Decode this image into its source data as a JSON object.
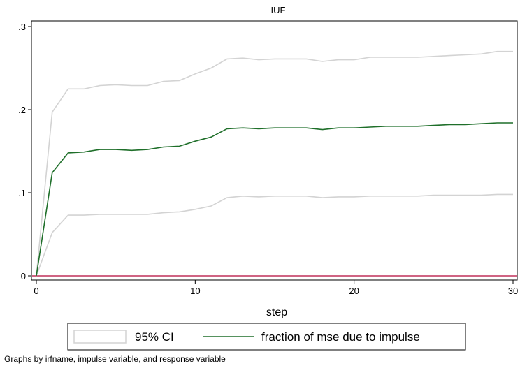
{
  "chart_data": {
    "type": "line",
    "title": "IUF",
    "xlabel": "step",
    "ylabel": "",
    "xlim": [
      0,
      30
    ],
    "ylim": [
      0,
      0.3
    ],
    "x_ticks": [
      {
        "value": 0,
        "label": "0"
      },
      {
        "value": 10,
        "label": "10"
      },
      {
        "value": 20,
        "label": "20"
      },
      {
        "value": 30,
        "label": "30"
      }
    ],
    "y_ticks": [
      {
        "value": 0,
        "label": "0"
      },
      {
        "value": 0.1,
        "label": ".1"
      },
      {
        "value": 0.2,
        "label": ".2"
      },
      {
        "value": 0.3,
        "label": ".3"
      }
    ],
    "x": [
      0,
      1,
      2,
      3,
      4,
      5,
      6,
      7,
      8,
      9,
      10,
      11,
      12,
      13,
      14,
      15,
      16,
      17,
      18,
      19,
      20,
      21,
      22,
      23,
      24,
      25,
      26,
      27,
      28,
      29,
      30
    ],
    "series": [
      {
        "name": "95% CI",
        "role": "ci_upper",
        "color": "#d3d3d3",
        "values": [
          0,
          0.197,
          0.225,
          0.225,
          0.229,
          0.23,
          0.229,
          0.229,
          0.234,
          0.235,
          0.243,
          0.25,
          0.261,
          0.262,
          0.26,
          0.261,
          0.261,
          0.261,
          0.258,
          0.26,
          0.26,
          0.263,
          0.263,
          0.263,
          0.263,
          0.264,
          0.265,
          0.266,
          0.267,
          0.27,
          0.27
        ]
      },
      {
        "name": "95% CI",
        "role": "ci_lower",
        "color": "#d3d3d3",
        "values": [
          0,
          0.052,
          0.073,
          0.073,
          0.074,
          0.074,
          0.074,
          0.074,
          0.076,
          0.077,
          0.08,
          0.084,
          0.094,
          0.096,
          0.095,
          0.096,
          0.096,
          0.096,
          0.094,
          0.095,
          0.095,
          0.096,
          0.096,
          0.096,
          0.096,
          0.097,
          0.097,
          0.097,
          0.097,
          0.098,
          0.098
        ]
      },
      {
        "name": "fraction of mse due to impulse",
        "role": "estimate",
        "color": "#1f6f2a",
        "values": [
          0,
          0.124,
          0.148,
          0.149,
          0.152,
          0.152,
          0.151,
          0.152,
          0.155,
          0.156,
          0.162,
          0.167,
          0.177,
          0.178,
          0.177,
          0.178,
          0.178,
          0.178,
          0.176,
          0.178,
          0.178,
          0.179,
          0.18,
          0.18,
          0.18,
          0.181,
          0.182,
          0.182,
          0.183,
          0.184,
          0.184
        ]
      }
    ],
    "reference_line": {
      "y": 0,
      "color": "#c0305a"
    },
    "legend": {
      "position": "bottom",
      "entries": [
        {
          "label": "95% CI",
          "color": "#d3d3d3"
        },
        {
          "label": "fraction of mse due to impulse",
          "color": "#1f6f2a"
        }
      ]
    },
    "grid": false
  },
  "note": "Graphs by irfname, impulse variable, and response variable"
}
